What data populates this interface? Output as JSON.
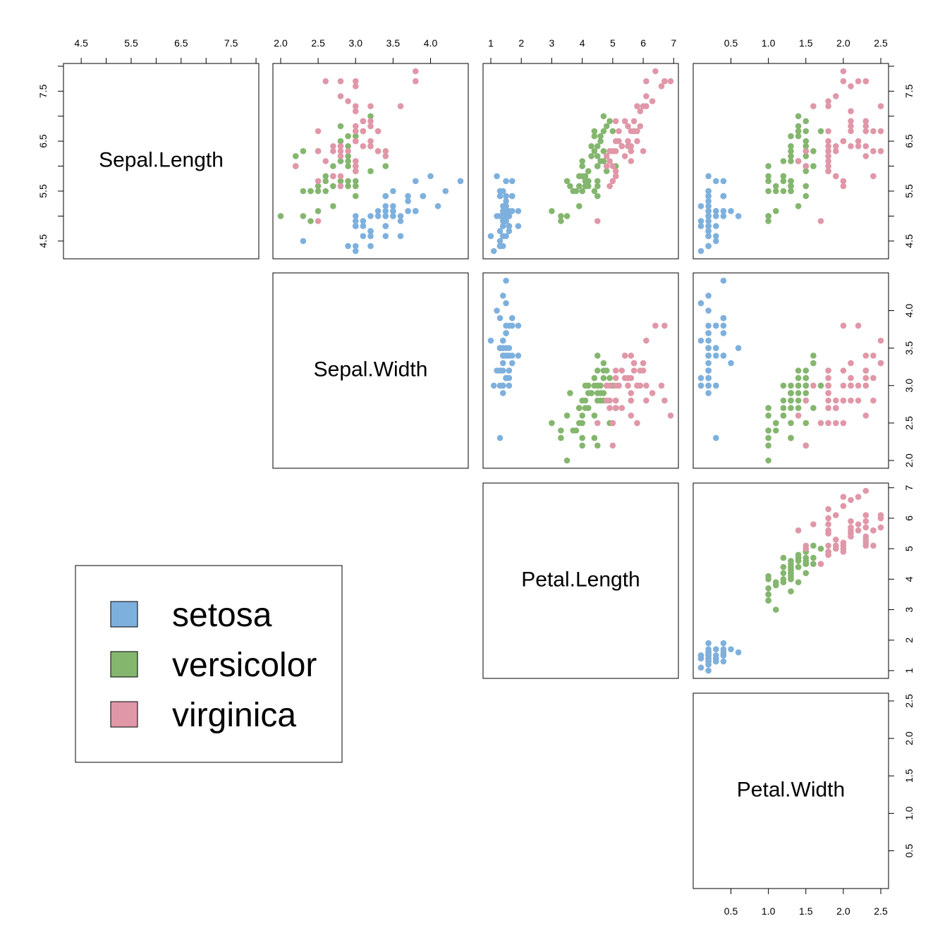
{
  "chart_data": {
    "type": "scatter",
    "variables": [
      "Sepal.Length",
      "Sepal.Width",
      "Petal.Length",
      "Petal.Width"
    ],
    "layout": "upper-triangle",
    "ranges": {
      "Sepal.Length": [
        4.3,
        7.9
      ],
      "Sepal.Width": [
        2.0,
        4.4
      ],
      "Petal.Length": [
        1.0,
        6.9
      ],
      "Petal.Width": [
        0.1,
        2.5
      ]
    },
    "ticks": {
      "Sepal.Length": [
        "4.5",
        "5.5",
        "6.5",
        "7.5"
      ],
      "Sepal.Width": [
        "2.0",
        "2.5",
        "3.0",
        "3.5",
        "4.0"
      ],
      "Petal.Length": [
        "1",
        "2",
        "3",
        "4",
        "5",
        "6",
        "7"
      ],
      "Petal.Width": [
        "0.5",
        "1.0",
        "1.5",
        "2.0",
        "2.5"
      ]
    },
    "minor_ticks": {
      "Sepal.Length": [
        5.0,
        6.0,
        7.0,
        8.0
      ]
    },
    "legend": {
      "position": "bottom-left",
      "entries": [
        "setosa",
        "versicolor",
        "virginica"
      ]
    },
    "series": [
      {
        "name": "setosa",
        "color": "#7EB0DD",
        "points": [
          [
            5.1,
            3.5,
            1.4,
            0.2
          ],
          [
            4.9,
            3.0,
            1.4,
            0.2
          ],
          [
            4.7,
            3.2,
            1.3,
            0.2
          ],
          [
            4.6,
            3.1,
            1.5,
            0.2
          ],
          [
            5.0,
            3.6,
            1.4,
            0.2
          ],
          [
            5.4,
            3.9,
            1.7,
            0.4
          ],
          [
            4.6,
            3.4,
            1.4,
            0.3
          ],
          [
            5.0,
            3.4,
            1.5,
            0.2
          ],
          [
            4.4,
            2.9,
            1.4,
            0.2
          ],
          [
            4.9,
            3.1,
            1.5,
            0.1
          ],
          [
            5.4,
            3.7,
            1.5,
            0.2
          ],
          [
            4.8,
            3.4,
            1.6,
            0.2
          ],
          [
            4.8,
            3.0,
            1.4,
            0.1
          ],
          [
            4.3,
            3.0,
            1.1,
            0.1
          ],
          [
            5.8,
            4.0,
            1.2,
            0.2
          ],
          [
            5.7,
            4.4,
            1.5,
            0.4
          ],
          [
            5.4,
            3.9,
            1.3,
            0.4
          ],
          [
            5.1,
            3.5,
            1.4,
            0.3
          ],
          [
            5.7,
            3.8,
            1.7,
            0.3
          ],
          [
            5.1,
            3.8,
            1.5,
            0.3
          ],
          [
            5.4,
            3.4,
            1.7,
            0.2
          ],
          [
            5.1,
            3.7,
            1.5,
            0.4
          ],
          [
            4.6,
            3.6,
            1.0,
            0.2
          ],
          [
            5.1,
            3.3,
            1.7,
            0.5
          ],
          [
            4.8,
            3.4,
            1.9,
            0.2
          ],
          [
            5.0,
            3.0,
            1.6,
            0.2
          ],
          [
            5.0,
            3.4,
            1.6,
            0.4
          ],
          [
            5.2,
            3.5,
            1.5,
            0.2
          ],
          [
            5.2,
            3.4,
            1.4,
            0.2
          ],
          [
            4.7,
            3.2,
            1.6,
            0.2
          ],
          [
            4.8,
            3.1,
            1.6,
            0.2
          ],
          [
            5.4,
            3.4,
            1.5,
            0.4
          ],
          [
            5.2,
            4.1,
            1.5,
            0.1
          ],
          [
            5.5,
            4.2,
            1.4,
            0.2
          ],
          [
            4.9,
            3.1,
            1.5,
            0.2
          ],
          [
            5.0,
            3.2,
            1.2,
            0.2
          ],
          [
            5.5,
            3.5,
            1.3,
            0.2
          ],
          [
            4.9,
            3.6,
            1.4,
            0.1
          ],
          [
            4.4,
            3.0,
            1.3,
            0.2
          ],
          [
            5.1,
            3.4,
            1.5,
            0.2
          ],
          [
            5.0,
            3.5,
            1.3,
            0.3
          ],
          [
            4.5,
            2.3,
            1.3,
            0.3
          ],
          [
            4.4,
            3.2,
            1.3,
            0.2
          ],
          [
            5.0,
            3.5,
            1.6,
            0.6
          ],
          [
            5.1,
            3.8,
            1.9,
            0.4
          ],
          [
            4.8,
            3.0,
            1.4,
            0.3
          ],
          [
            5.1,
            3.8,
            1.6,
            0.2
          ],
          [
            4.6,
            3.2,
            1.4,
            0.2
          ],
          [
            5.3,
            3.7,
            1.5,
            0.2
          ],
          [
            5.0,
            3.3,
            1.4,
            0.2
          ]
        ]
      },
      {
        "name": "versicolor",
        "color": "#84B66E",
        "points": [
          [
            7.0,
            3.2,
            4.7,
            1.4
          ],
          [
            6.4,
            3.2,
            4.5,
            1.5
          ],
          [
            6.9,
            3.1,
            4.9,
            1.5
          ],
          [
            5.5,
            2.3,
            4.0,
            1.3
          ],
          [
            6.5,
            2.8,
            4.6,
            1.5
          ],
          [
            5.7,
            2.8,
            4.5,
            1.3
          ],
          [
            6.3,
            3.3,
            4.7,
            1.6
          ],
          [
            4.9,
            2.4,
            3.3,
            1.0
          ],
          [
            6.6,
            2.9,
            4.6,
            1.3
          ],
          [
            5.2,
            2.7,
            3.9,
            1.4
          ],
          [
            5.0,
            2.0,
            3.5,
            1.0
          ],
          [
            5.9,
            3.0,
            4.2,
            1.5
          ],
          [
            6.0,
            2.2,
            4.0,
            1.0
          ],
          [
            6.1,
            2.9,
            4.7,
            1.4
          ],
          [
            5.6,
            2.9,
            3.6,
            1.3
          ],
          [
            6.7,
            3.1,
            4.4,
            1.4
          ],
          [
            5.6,
            3.0,
            4.5,
            1.5
          ],
          [
            5.8,
            2.7,
            4.1,
            1.0
          ],
          [
            6.2,
            2.2,
            4.5,
            1.5
          ],
          [
            5.6,
            2.5,
            3.9,
            1.1
          ],
          [
            5.9,
            3.2,
            4.8,
            1.8
          ],
          [
            6.1,
            2.8,
            4.0,
            1.3
          ],
          [
            6.3,
            2.5,
            4.9,
            1.5
          ],
          [
            6.1,
            2.8,
            4.7,
            1.2
          ],
          [
            6.4,
            2.9,
            4.3,
            1.3
          ],
          [
            6.6,
            3.0,
            4.4,
            1.4
          ],
          [
            6.8,
            2.8,
            4.8,
            1.4
          ],
          [
            6.7,
            3.0,
            5.0,
            1.7
          ],
          [
            6.0,
            2.9,
            4.5,
            1.5
          ],
          [
            5.7,
            2.6,
            3.5,
            1.0
          ],
          [
            5.5,
            2.4,
            3.8,
            1.1
          ],
          [
            5.5,
            2.4,
            3.7,
            1.0
          ],
          [
            5.8,
            2.7,
            3.9,
            1.2
          ],
          [
            6.0,
            2.7,
            5.1,
            1.6
          ],
          [
            5.4,
            3.0,
            4.5,
            1.5
          ],
          [
            6.0,
            3.4,
            4.5,
            1.6
          ],
          [
            6.7,
            3.1,
            4.7,
            1.5
          ],
          [
            6.3,
            2.3,
            4.4,
            1.3
          ],
          [
            5.6,
            3.0,
            4.1,
            1.3
          ],
          [
            5.5,
            2.5,
            4.0,
            1.3
          ],
          [
            5.5,
            2.6,
            4.4,
            1.2
          ],
          [
            6.1,
            3.0,
            4.6,
            1.4
          ],
          [
            5.8,
            2.6,
            4.0,
            1.2
          ],
          [
            5.0,
            2.3,
            3.3,
            1.0
          ],
          [
            5.6,
            2.7,
            4.2,
            1.3
          ],
          [
            5.7,
            3.0,
            4.2,
            1.2
          ],
          [
            5.7,
            2.9,
            4.2,
            1.3
          ],
          [
            6.2,
            2.9,
            4.3,
            1.3
          ],
          [
            5.1,
            2.5,
            3.0,
            1.1
          ],
          [
            5.7,
            2.8,
            4.1,
            1.3
          ]
        ]
      },
      {
        "name": "virginica",
        "color": "#E097A8",
        "points": [
          [
            6.3,
            3.3,
            6.0,
            2.5
          ],
          [
            5.8,
            2.7,
            5.1,
            1.9
          ],
          [
            7.1,
            3.0,
            5.9,
            2.1
          ],
          [
            6.3,
            2.9,
            5.6,
            1.8
          ],
          [
            6.5,
            3.0,
            5.8,
            2.2
          ],
          [
            7.6,
            3.0,
            6.6,
            2.1
          ],
          [
            4.9,
            2.5,
            4.5,
            1.7
          ],
          [
            7.3,
            2.9,
            6.3,
            1.8
          ],
          [
            6.7,
            2.5,
            5.8,
            1.8
          ],
          [
            7.2,
            3.6,
            6.1,
            2.5
          ],
          [
            6.5,
            3.2,
            5.1,
            2.0
          ],
          [
            6.4,
            2.7,
            5.3,
            1.9
          ],
          [
            6.8,
            3.0,
            5.5,
            2.1
          ],
          [
            5.7,
            2.5,
            5.0,
            2.0
          ],
          [
            5.8,
            2.8,
            5.1,
            2.4
          ],
          [
            6.4,
            3.2,
            5.3,
            2.3
          ],
          [
            6.5,
            3.0,
            5.5,
            1.8
          ],
          [
            7.7,
            3.8,
            6.7,
            2.2
          ],
          [
            7.7,
            2.6,
            6.9,
            2.3
          ],
          [
            6.0,
            2.2,
            5.0,
            1.5
          ],
          [
            6.9,
            3.2,
            5.7,
            2.3
          ],
          [
            5.6,
            2.8,
            4.9,
            2.0
          ],
          [
            7.7,
            2.8,
            6.7,
            2.0
          ],
          [
            6.3,
            2.7,
            4.9,
            1.8
          ],
          [
            6.7,
            3.3,
            5.7,
            2.1
          ],
          [
            7.2,
            3.2,
            6.0,
            1.8
          ],
          [
            6.2,
            2.8,
            4.8,
            1.8
          ],
          [
            6.1,
            3.0,
            4.9,
            1.8
          ],
          [
            6.4,
            2.8,
            5.6,
            2.1
          ],
          [
            7.2,
            3.0,
            5.8,
            1.6
          ],
          [
            7.4,
            2.8,
            6.1,
            1.9
          ],
          [
            7.9,
            3.8,
            6.4,
            2.0
          ],
          [
            6.4,
            2.8,
            5.6,
            2.2
          ],
          [
            6.3,
            2.8,
            5.1,
            1.5
          ],
          [
            6.1,
            2.6,
            5.6,
            1.4
          ],
          [
            7.7,
            3.0,
            6.1,
            2.3
          ],
          [
            6.3,
            3.4,
            5.6,
            2.4
          ],
          [
            6.4,
            3.1,
            5.5,
            1.8
          ],
          [
            6.0,
            3.0,
            4.8,
            1.8
          ],
          [
            6.9,
            3.1,
            5.4,
            2.1
          ],
          [
            6.7,
            3.1,
            5.6,
            2.4
          ],
          [
            6.9,
            3.1,
            5.1,
            2.3
          ],
          [
            5.8,
            2.7,
            5.1,
            1.9
          ],
          [
            6.8,
            3.2,
            5.9,
            2.3
          ],
          [
            6.7,
            3.3,
            5.7,
            2.5
          ],
          [
            6.7,
            3.0,
            5.2,
            2.3
          ],
          [
            6.3,
            2.5,
            5.0,
            1.9
          ],
          [
            6.5,
            3.0,
            5.2,
            2.0
          ],
          [
            6.2,
            3.4,
            5.4,
            2.3
          ],
          [
            5.9,
            3.0,
            5.1,
            1.8
          ]
        ]
      }
    ]
  }
}
